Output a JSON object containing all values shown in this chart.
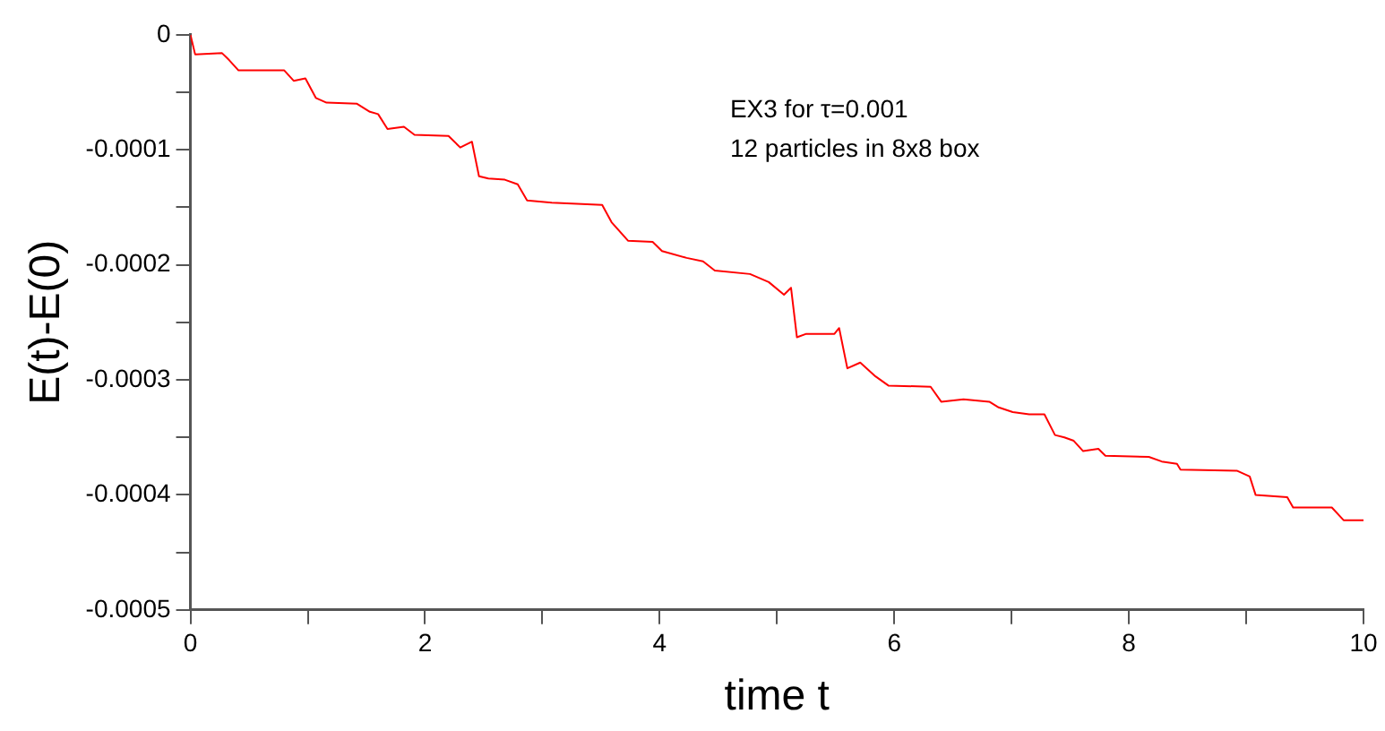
{
  "chart_data": {
    "type": "line",
    "xlabel": "time t",
    "ylabel": "E(t)-E(0)",
    "annotations": [
      "EX3 for τ=0.001",
      "12 particles in 8x8 box"
    ],
    "xlim": [
      0,
      10
    ],
    "xticks": [
      0,
      {
        "value": 1,
        "label": null
      },
      2,
      {
        "value": 3,
        "label": null
      },
      4,
      {
        "value": 5,
        "label": null
      },
      6,
      {
        "value": 7,
        "label": null
      },
      8,
      {
        "value": 9,
        "label": null
      },
      10
    ],
    "ylim": [
      -0.0005,
      0
    ],
    "yticks": [
      0,
      {
        "value": -5e-05,
        "label": null
      },
      -0.0001,
      {
        "value": -0.00015,
        "label": null
      },
      -0.0002,
      {
        "value": -0.00025,
        "label": null
      },
      -0.0003,
      {
        "value": -0.00035,
        "label": null
      },
      -0.0004,
      {
        "value": -0.00045,
        "label": null
      },
      -0.0005
    ],
    "grid": false,
    "legend": false,
    "marker": "none",
    "line_style": "solid",
    "series": [
      {
        "color": "#ff0000",
        "x": [
          0,
          0.04,
          0.27,
          0.33,
          0.41,
          0.8,
          0.88,
          0.98,
          1.07,
          1.16,
          1.42,
          1.53,
          1.6,
          1.68,
          1.82,
          1.91,
          2.2,
          2.3,
          2.4,
          2.46,
          2.54,
          2.68,
          2.79,
          2.87,
          3.08,
          3.51,
          3.59,
          3.73,
          3.94,
          4.02,
          4.23,
          4.37,
          4.47,
          4.77,
          4.93,
          5.06,
          5.12,
          5.17,
          5.25,
          5.49,
          5.53,
          5.6,
          5.71,
          5.84,
          5.95,
          6.31,
          6.4,
          6.59,
          6.81,
          6.89,
          7.01,
          7.15,
          7.28,
          7.37,
          7.45,
          7.53,
          7.61,
          7.74,
          7.8,
          8.17,
          8.28,
          8.41,
          8.44,
          8.92,
          9.03,
          9.08,
          9.35,
          9.4,
          9.73,
          9.83,
          10
        ],
        "values": [
          0,
          -1.7e-05,
          -1.6e-05,
          -2.2e-05,
          -3.1e-05,
          -3.1e-05,
          -4e-05,
          -3.8e-05,
          -5.5e-05,
          -5.9e-05,
          -6e-05,
          -6.7e-05,
          -6.9e-05,
          -8.2e-05,
          -8e-05,
          -8.7e-05,
          -8.8e-05,
          -9.8e-05,
          -9.3e-05,
          -0.000123,
          -0.000125,
          -0.000126,
          -0.00013,
          -0.000144,
          -0.000146,
          -0.000148,
          -0.000163,
          -0.000179,
          -0.00018,
          -0.000188,
          -0.000194,
          -0.000197,
          -0.000205,
          -0.000208,
          -0.000215,
          -0.000226,
          -0.00022,
          -0.000263,
          -0.00026,
          -0.00026,
          -0.000255,
          -0.00029,
          -0.000285,
          -0.000297,
          -0.000305,
          -0.000306,
          -0.000319,
          -0.000317,
          -0.000319,
          -0.000324,
          -0.000328,
          -0.00033,
          -0.00033,
          -0.000348,
          -0.00035,
          -0.000353,
          -0.000362,
          -0.00036,
          -0.000366,
          -0.000367,
          -0.000371,
          -0.000373,
          -0.000378,
          -0.000379,
          -0.000384,
          -0.0004,
          -0.000402,
          -0.000411,
          -0.000411,
          -0.000422,
          -0.000422
        ]
      }
    ]
  }
}
